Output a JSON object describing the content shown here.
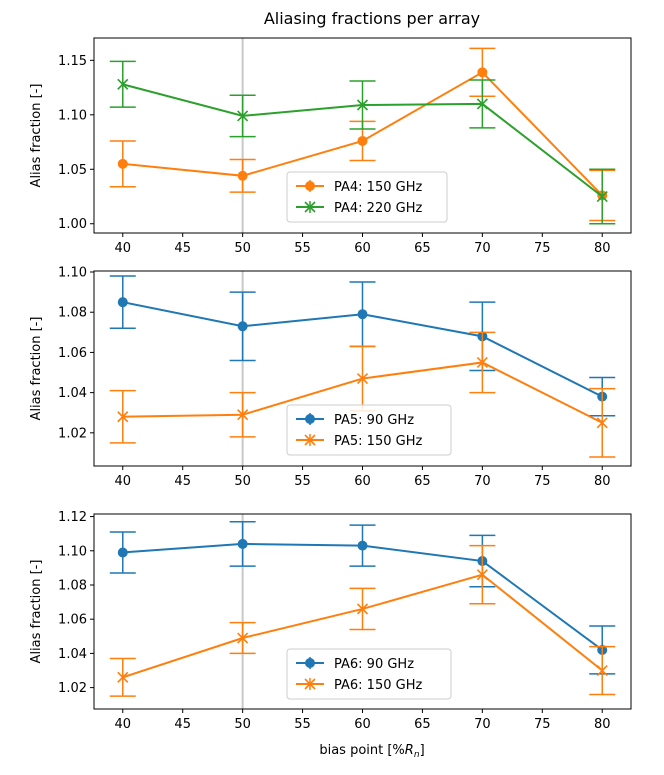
{
  "figure_title": "Aliasing fractions per array",
  "xlabel_main": "bias point [%",
  "xlabel_sym": "R",
  "xlabel_sub": "n",
  "xlabel_end": "]",
  "colors": {
    "orange": "#ff7f0e",
    "green": "#2ca02c",
    "blue": "#1f77b4",
    "vline": "#c8c8c8"
  },
  "chart_data": [
    {
      "type": "line",
      "ylabel": "Alias fraction [-]",
      "xlim": [
        37.6,
        82.4
      ],
      "ylim": [
        0.9915,
        1.1705
      ],
      "xticks": [
        40,
        45,
        50,
        55,
        60,
        65,
        70,
        75,
        80
      ],
      "yticks": [
        1.0,
        1.05,
        1.1,
        1.15
      ],
      "ytick_labels": [
        "1.00",
        "1.05",
        "1.10",
        "1.15"
      ],
      "vline_x": 50,
      "legend": "lower center",
      "series": [
        {
          "name": "PA4: 150 GHz",
          "color": "orange",
          "marker": "circle",
          "x": [
            40,
            50,
            60,
            70,
            80
          ],
          "y": [
            1.055,
            1.044,
            1.076,
            1.139,
            1.026
          ],
          "err": [
            0.021,
            0.015,
            0.018,
            0.022,
            0.023
          ]
        },
        {
          "name": "PA4: 220 GHz",
          "color": "green",
          "marker": "x",
          "x": [
            40,
            50,
            60,
            70,
            80
          ],
          "y": [
            1.128,
            1.099,
            1.109,
            1.11,
            1.025
          ],
          "err": [
            0.021,
            0.019,
            0.022,
            0.022,
            0.025
          ]
        }
      ]
    },
    {
      "type": "line",
      "ylabel": "Alias fraction [-]",
      "xlim": [
        37.6,
        82.4
      ],
      "ylim": [
        1.0035,
        1.1005
      ],
      "xticks": [
        40,
        45,
        50,
        55,
        60,
        65,
        70,
        75,
        80
      ],
      "yticks": [
        1.02,
        1.04,
        1.06,
        1.08,
        1.1
      ],
      "ytick_labels": [
        "1.02",
        "1.04",
        "1.06",
        "1.08",
        "1.10"
      ],
      "vline_x": 50,
      "legend": "lower center",
      "series": [
        {
          "name": "PA5: 90 GHz",
          "color": "blue",
          "marker": "circle",
          "x": [
            40,
            50,
            60,
            70,
            80
          ],
          "y": [
            1.085,
            1.073,
            1.079,
            1.068,
            1.038
          ],
          "err": [
            0.013,
            0.017,
            0.016,
            0.017,
            0.0095
          ]
        },
        {
          "name": "PA5: 150 GHz",
          "color": "orange",
          "marker": "x",
          "x": [
            40,
            50,
            60,
            70,
            80
          ],
          "y": [
            1.028,
            1.029,
            1.047,
            1.055,
            1.025
          ],
          "err": [
            0.013,
            0.011,
            0.016,
            0.015,
            0.017
          ]
        }
      ]
    },
    {
      "type": "line",
      "ylabel": "Alias fraction [-]",
      "xlim": [
        37.6,
        82.4
      ],
      "ylim": [
        1.0075,
        1.1215
      ],
      "xticks": [
        40,
        45,
        50,
        55,
        60,
        65,
        70,
        75,
        80
      ],
      "yticks": [
        1.02,
        1.04,
        1.06,
        1.08,
        1.1,
        1.12
      ],
      "ytick_labels": [
        "1.02",
        "1.04",
        "1.06",
        "1.08",
        "1.10",
        "1.12"
      ],
      "vline_x": 50,
      "legend": "lower center",
      "series": [
        {
          "name": "PA6: 90 GHz",
          "color": "blue",
          "marker": "circle",
          "x": [
            40,
            50,
            60,
            70,
            80
          ],
          "y": [
            1.099,
            1.104,
            1.103,
            1.094,
            1.042
          ],
          "err": [
            0.012,
            0.013,
            0.012,
            0.015,
            0.014
          ]
        },
        {
          "name": "PA6: 150 GHz",
          "color": "orange",
          "marker": "x",
          "x": [
            40,
            50,
            60,
            70,
            80
          ],
          "y": [
            1.026,
            1.049,
            1.066,
            1.086,
            1.03
          ],
          "err": [
            0.011,
            0.009,
            0.012,
            0.017,
            0.014
          ]
        }
      ]
    }
  ]
}
